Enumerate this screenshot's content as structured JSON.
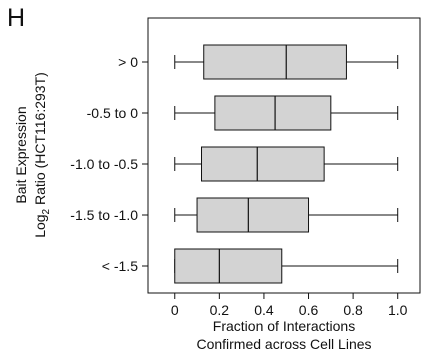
{
  "panel_label": "H",
  "chart_data": {
    "type": "boxplot",
    "orientation": "horizontal",
    "xlabel_lines": [
      "Fraction of Interactions",
      "Confirmed across Cell Lines"
    ],
    "ylabel_line1": "Bait Expression",
    "ylabel_line2_prefix": "Log",
    "ylabel_line2_sub": "2",
    "ylabel_line2_rest": " Ratio (HCT116:293T)",
    "xlim": [
      -0.12,
      1.1
    ],
    "xticks": [
      0,
      0.2,
      0.4,
      0.6,
      0.8,
      1.0
    ],
    "xtick_labels": [
      "0",
      "0.2",
      "0.4",
      "0.6",
      "0.8",
      "1.0"
    ],
    "grid": false,
    "box_color": "#d3d3d3",
    "edge_color": "#111111",
    "series": [
      {
        "category": "> 0",
        "whisker_low": 0,
        "q1": 0.13,
        "median": 0.5,
        "q3": 0.77,
        "whisker_high": 1.0
      },
      {
        "category": "-0.5 to 0",
        "whisker_low": 0,
        "q1": 0.18,
        "median": 0.45,
        "q3": 0.7,
        "whisker_high": 1.0
      },
      {
        "category": "-1.0 to -0.5",
        "whisker_low": 0,
        "q1": 0.12,
        "median": 0.37,
        "q3": 0.67,
        "whisker_high": 1.0
      },
      {
        "category": "-1.5 to -1.0",
        "whisker_low": 0,
        "q1": 0.1,
        "median": 0.33,
        "q3": 0.6,
        "whisker_high": 1.0
      },
      {
        "category": "< -1.5",
        "whisker_low": 0,
        "q1": 0.0,
        "median": 0.2,
        "q3": 0.48,
        "whisker_high": 1.0
      }
    ]
  }
}
